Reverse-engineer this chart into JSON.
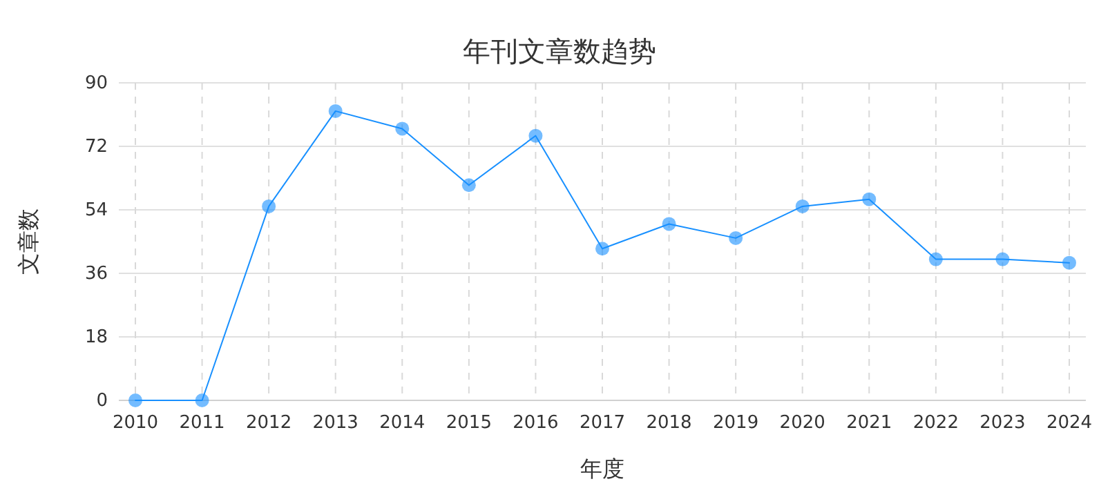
{
  "chart_data": {
    "type": "line",
    "title": "年刊文章数趋势",
    "xlabel": "年度",
    "ylabel": "文章数",
    "categories": [
      "2010",
      "2011",
      "2012",
      "2013",
      "2014",
      "2015",
      "2016",
      "2017",
      "2018",
      "2019",
      "2020",
      "2021",
      "2022",
      "2023",
      "2024"
    ],
    "series": [
      {
        "color": "#1890ff",
        "values": [
          0,
          0,
          55,
          82,
          77,
          61,
          75,
          43,
          50,
          46,
          55,
          57,
          40,
          40,
          39
        ]
      }
    ],
    "ylim": [
      0,
      90
    ],
    "yticks": [
      0,
      18,
      36,
      54,
      72,
      90
    ],
    "grid": true,
    "marker": "circle",
    "line_style": "solid"
  }
}
